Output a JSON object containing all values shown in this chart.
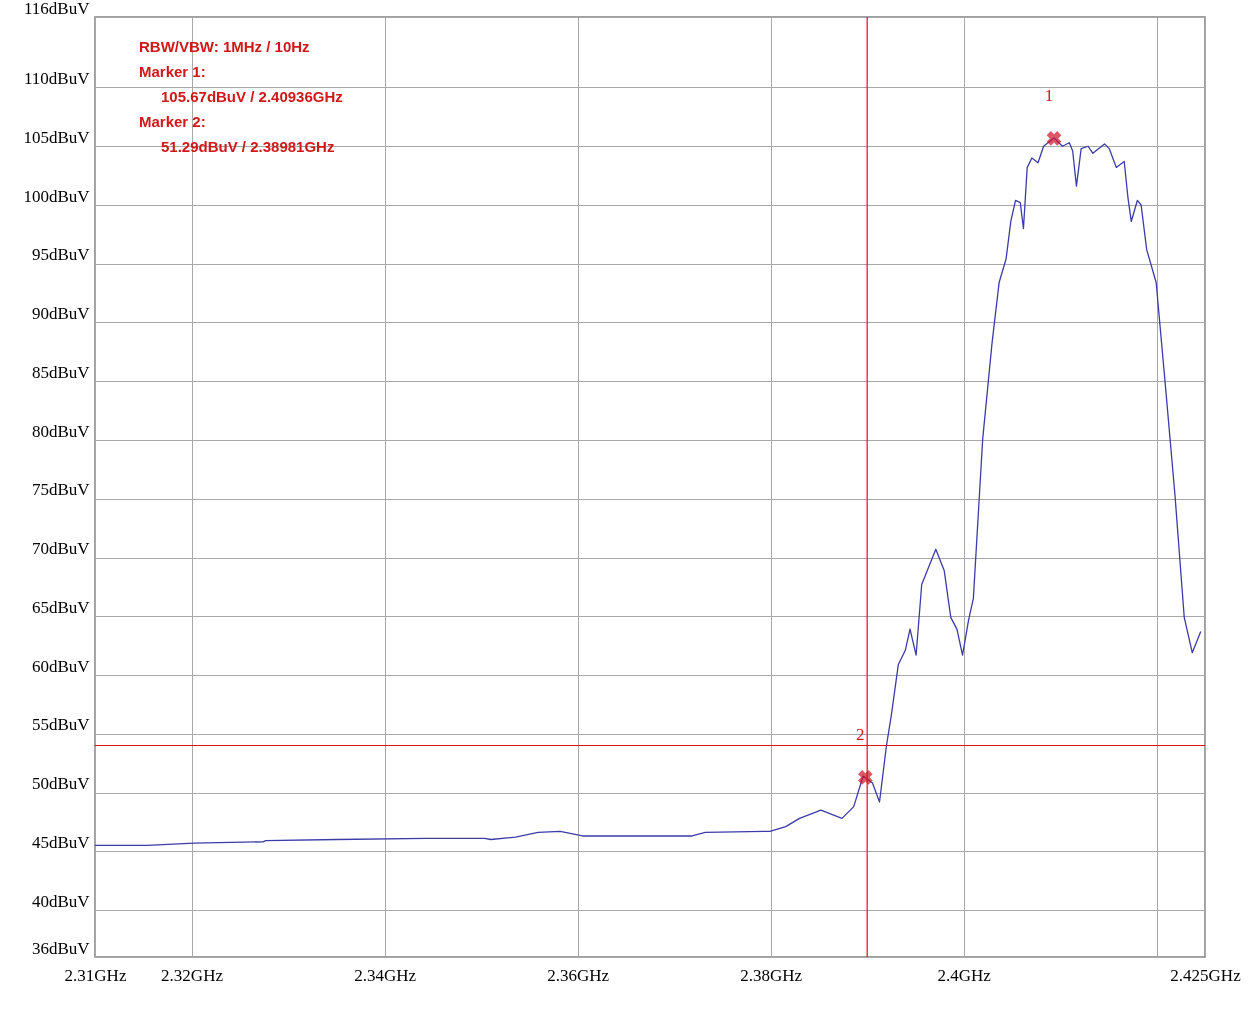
{
  "chart_data": {
    "type": "line",
    "annotations": [
      "RBW/VBW: 1MHz / 10Hz",
      "Marker 1:",
      "105.67dBuV / 2.40936GHz",
      "Marker 2:",
      "51.29dBuV / 2.38981GHz",
      {
        "text": "1",
        "x": 2.40936,
        "y": 105.67
      },
      {
        "text": "2",
        "x": 2.38981,
        "y": 51.29
      }
    ],
    "series": [
      {
        "color": "#3c3ca8",
        "marker": "none",
        "x": [
          2.31,
          2.31542,
          2.32026,
          2.32741,
          2.32768,
          2.33507,
          2.34433,
          2.35033,
          2.35103,
          2.35358,
          2.35589,
          2.3582,
          2.36051,
          2.37185,
          2.37323,
          2.37993,
          2.38156,
          2.383,
          2.38521,
          2.38739,
          2.38861,
          2.38958,
          2.39055,
          2.39128,
          2.392,
          2.39249,
          2.39323,
          2.39395,
          2.39444,
          2.39507,
          2.39565,
          2.39711,
          2.39798,
          2.39866,
          2.3993,
          2.39988,
          2.40051,
          2.401,
          2.40197,
          2.40293,
          2.40367,
          2.40439,
          2.40488,
          2.40537,
          2.40586,
          2.40619,
          2.40658,
          2.40707,
          2.4077,
          2.40828,
          2.40936,
          2.41023,
          2.41095,
          2.41129,
          2.41168,
          2.41217,
          2.41289,
          2.41338,
          2.41459,
          2.41508,
          2.41581,
          2.41663,
          2.41702,
          2.41736,
          2.418,
          2.41838,
          2.41896,
          2.41994,
          2.42091,
          2.42189,
          2.42285,
          2.42368,
          2.42456
        ],
        "values": [
          45.5,
          45.5,
          45.7,
          45.8,
          45.9,
          46.0,
          46.1,
          46.1,
          46.0,
          46.2,
          46.6,
          46.7,
          46.3,
          46.3,
          46.6,
          46.7,
          47.1,
          47.8,
          48.5,
          47.8,
          48.8,
          51.4,
          50.8,
          49.2,
          54.0,
          56.5,
          60.9,
          62.1,
          63.9,
          61.7,
          67.7,
          70.7,
          68.9,
          64.9,
          63.9,
          61.7,
          64.7,
          66.5,
          80.1,
          88.2,
          93.4,
          95.4,
          98.6,
          100.4,
          100.2,
          98.0,
          103.2,
          104.0,
          103.6,
          105.0,
          105.7,
          105.0,
          105.3,
          104.6,
          101.6,
          104.8,
          105.0,
          104.4,
          105.2,
          104.8,
          103.2,
          103.7,
          100.6,
          98.6,
          100.4,
          100.0,
          96.2,
          93.4,
          84.5,
          75.3,
          64.9,
          61.9,
          63.7
        ]
      },
      {
        "type": "scatter",
        "color": "#d0102a",
        "marker": "cross",
        "x": [
          2.40936,
          2.38981
        ],
        "values": [
          105.67,
          51.29
        ]
      }
    ],
    "ref_lines": [
      {
        "axis": "x",
        "value": 2.39,
        "color": "#e01010"
      },
      {
        "axis": "y",
        "value": 54,
        "color": "#e01010"
      }
    ],
    "xlim": [
      2.31,
      2.425
    ],
    "xticks": [
      {
        "value": 2.31,
        "label": "2.31GHz"
      },
      {
        "value": 2.32,
        "label": "2.32GHz"
      },
      {
        "value": 2.34,
        "label": "2.34GHz"
      },
      {
        "value": 2.36,
        "label": "2.36GHz"
      },
      {
        "value": 2.38,
        "label": "2.38GHz"
      },
      {
        "value": 2.4,
        "label": "2.4GHz"
      },
      {
        "value": 2.42,
        "label": null
      },
      {
        "value": 2.425,
        "label": "2.425GHz"
      }
    ],
    "ylim": [
      36,
      116
    ],
    "yticks": [
      {
        "value": 36,
        "label": "36dBuV"
      },
      {
        "value": 40,
        "label": "40dBuV"
      },
      {
        "value": 45,
        "label": "45dBuV"
      },
      {
        "value": 50,
        "label": "50dBuV"
      },
      {
        "value": 55,
        "label": "55dBuV"
      },
      {
        "value": 60,
        "label": "60dBuV"
      },
      {
        "value": 65,
        "label": "65dBuV"
      },
      {
        "value": 70,
        "label": "70dBuV"
      },
      {
        "value": 75,
        "label": "75dBuV"
      },
      {
        "value": 80,
        "label": "80dBuV"
      },
      {
        "value": 85,
        "label": "85dBuV"
      },
      {
        "value": 90,
        "label": "90dBuV"
      },
      {
        "value": 95,
        "label": "95dBuV"
      },
      {
        "value": 100,
        "label": "100dBuV"
      },
      {
        "value": 105,
        "label": "105dBuV"
      },
      {
        "value": 110,
        "label": "110dBuV"
      },
      {
        "value": 116,
        "label": "116dBuV"
      }
    ],
    "grid": true,
    "line_style": "solid"
  }
}
